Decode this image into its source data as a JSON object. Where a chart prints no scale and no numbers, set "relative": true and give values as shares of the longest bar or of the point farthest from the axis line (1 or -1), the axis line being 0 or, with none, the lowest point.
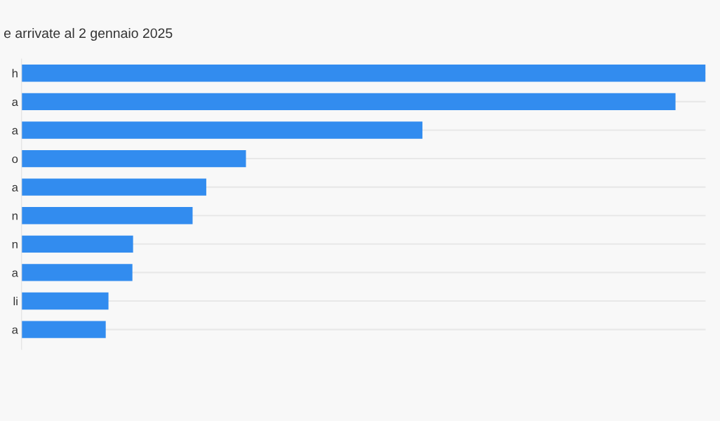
{
  "chart_data": {
    "type": "bar",
    "orientation": "horizontal",
    "relative": true,
    "title": "e arrivate al 2 gennaio 2025",
    "categories": [
      "h",
      "a",
      "a",
      "o",
      "a",
      "n",
      "n",
      "a",
      "li",
      "a"
    ],
    "values": [
      1,
      0.956,
      0.586,
      0.328,
      0.27,
      0.25,
      0.163,
      0.162,
      0.127,
      0.123
    ],
    "color": "#328cef",
    "grid": "y"
  }
}
